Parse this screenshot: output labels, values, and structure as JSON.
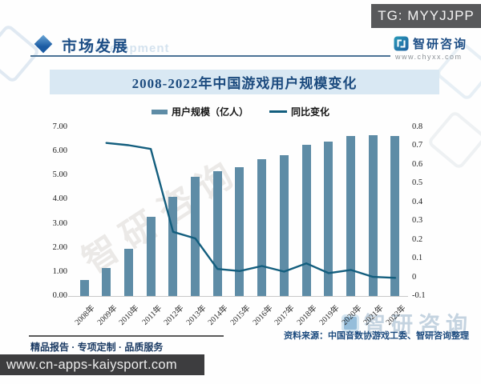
{
  "colors": {
    "bar": "#5e8ca6",
    "line": "#135e7e",
    "banner_bg": "#d9e8f3",
    "accent_blue": "#1c4d85",
    "tg_box_bg": "#58595b",
    "url_bar_bg": "#3d3d3f"
  },
  "overlay": {
    "tg_label": "TG: MYYJJPP",
    "bottom_url": "www.cn-apps-kaiysport.com"
  },
  "header": {
    "section_title": "市场发展",
    "bg_watermark": "development",
    "brand_name": "智研咨询",
    "brand_site": "www.chyxx.com"
  },
  "footer": {
    "tagline": "精品报告 · 专项定制 · 品质服务",
    "source": "资料来源：中国音数协游戏工委、智研咨询整理"
  },
  "watermarks": {
    "center": "智研咨询",
    "bottom_right": "智研咨询"
  },
  "chart_data": {
    "type": "bar",
    "subtype": "bar+line combo, dual axis",
    "title": "2008-2022年中国游戏用户规模变化",
    "categories": [
      "2008年",
      "2009年",
      "2010年",
      "2011年",
      "2012年",
      "2013年",
      "2014年",
      "2015年",
      "2016年",
      "2017年",
      "2018年",
      "2019年",
      "2020年",
      "2021年",
      "2022年"
    ],
    "series": [
      {
        "name": "用户规模（亿人）",
        "type": "bar",
        "axis": "left",
        "color": "#5e8ca6",
        "values": [
          0.67,
          1.15,
          1.96,
          3.3,
          4.1,
          4.95,
          5.17,
          5.34,
          5.66,
          5.83,
          6.26,
          6.4,
          6.65,
          6.66,
          6.64
        ]
      },
      {
        "name": "同比变化",
        "type": "line",
        "axis": "right",
        "color": "#135e7e",
        "values": [
          null,
          0.716,
          0.704,
          0.684,
          0.242,
          0.207,
          0.044,
          0.033,
          0.06,
          0.03,
          0.074,
          0.022,
          0.039,
          0.002,
          -0.003
        ]
      }
    ],
    "left_axis": {
      "min": 0,
      "max": 7,
      "ticks": [
        "7.00",
        "6.00",
        "5.00",
        "4.00",
        "3.00",
        "2.00",
        "1.00",
        "0.00"
      ]
    },
    "right_axis": {
      "min": -0.1,
      "max": 0.8,
      "ticks": [
        "0.8",
        "0.7",
        "0.6",
        "0.5",
        "0.4",
        "0.3",
        "0.2",
        "0.1",
        "0",
        "-0.1"
      ]
    },
    "grid": false,
    "legend_position": "top"
  }
}
